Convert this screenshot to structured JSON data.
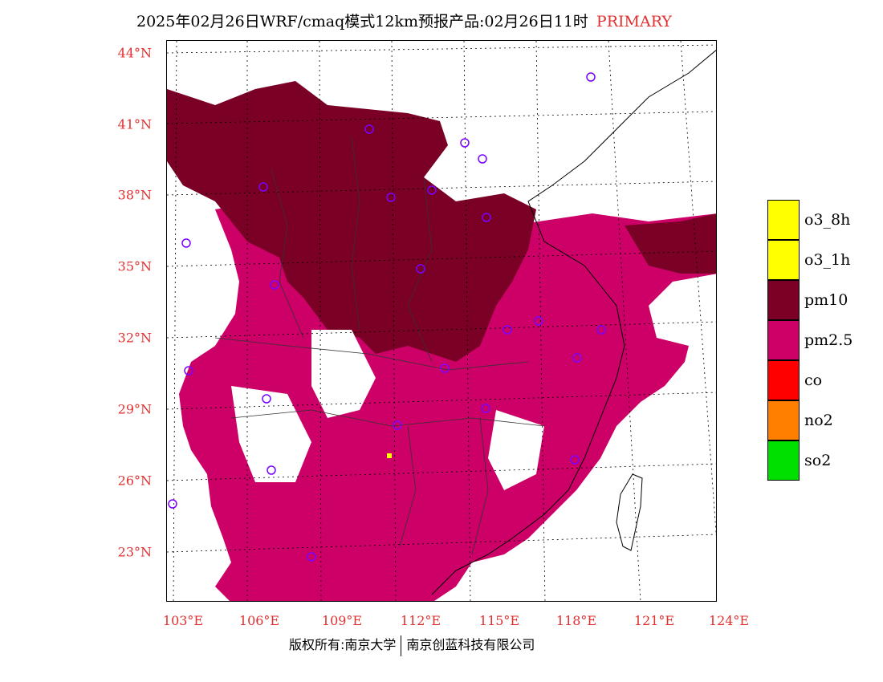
{
  "title": {
    "main": "2025年02月26日WRF/cmaq模式12km预报产品:02月26日11时",
    "tag": "PRIMARY",
    "tag_color": "#e03030"
  },
  "axes": {
    "latitude_labels": [
      "44°N",
      "41°N",
      "38°N",
      "35°N",
      "32°N",
      "29°N",
      "26°N",
      "23°N"
    ],
    "longitude_labels": [
      "103°E",
      "106°E",
      "109°E",
      "112°E",
      "115°E",
      "118°E",
      "121°E",
      "124°E"
    ],
    "label_color": "#e03030"
  },
  "legend": [
    {
      "label": "o3_8h",
      "color": "#ffff00"
    },
    {
      "label": "o3_1h",
      "color": "#ffff00"
    },
    {
      "label": "pm10",
      "color": "#7a0026"
    },
    {
      "label": "pm2.5",
      "color": "#cc0066"
    },
    {
      "label": "co",
      "color": "#ff0000"
    },
    {
      "label": "no2",
      "color": "#ff8000"
    },
    {
      "label": "so2",
      "color": "#00e000"
    }
  ],
  "footer": {
    "left": "版权所有:南京大学",
    "right": "南京创蓝科技有限公司"
  }
}
